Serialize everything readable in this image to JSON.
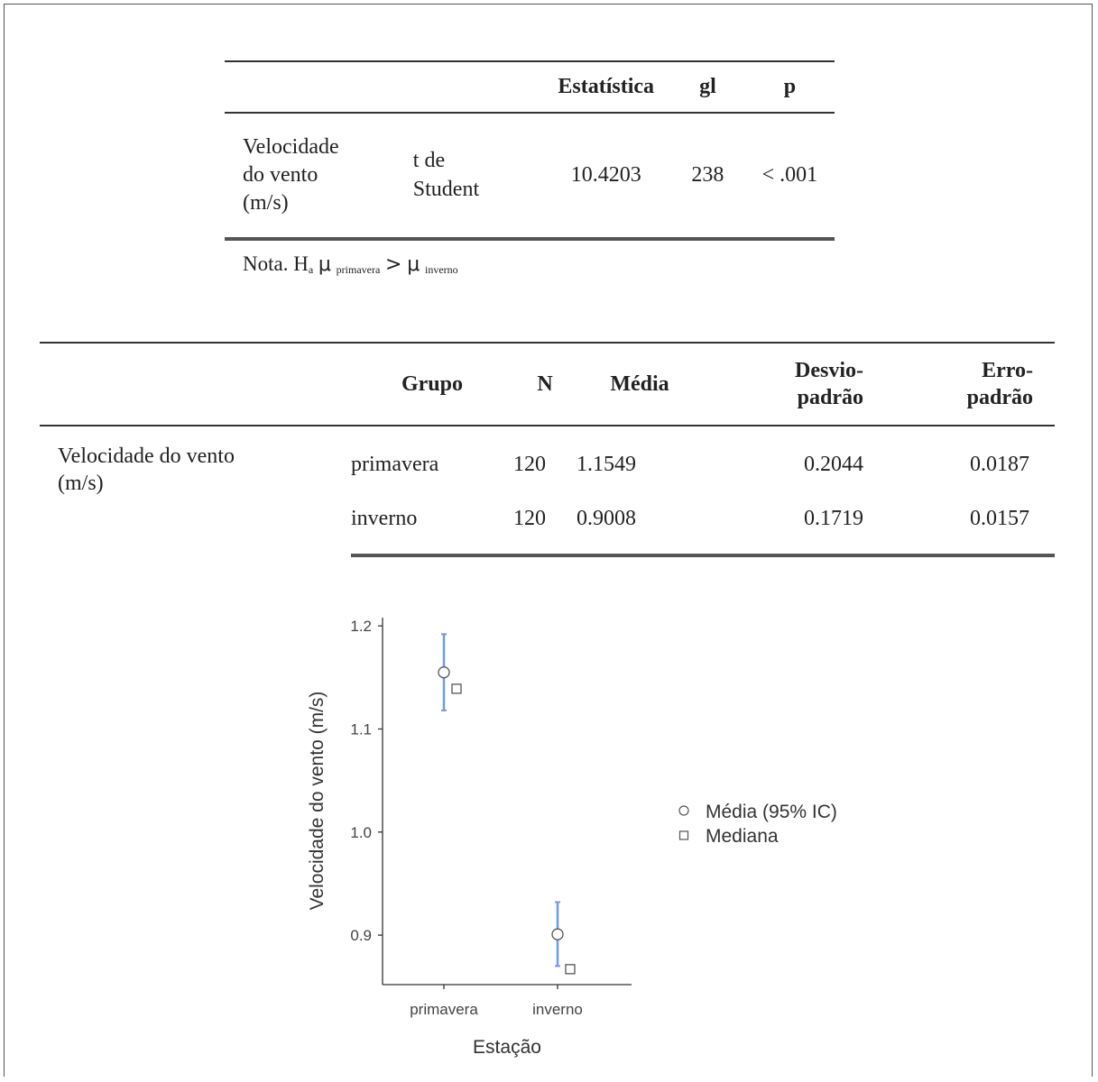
{
  "table1": {
    "headers": [
      "",
      "",
      "Estatística",
      "gl",
      "p"
    ],
    "row": {
      "variable_lines": [
        "Velocidade",
        "do vento",
        "(m/s)"
      ],
      "test_lines": [
        "t de",
        "Student"
      ],
      "statistic": "10.4203",
      "gl": "238",
      "p": "< .001"
    },
    "note": {
      "prefix": "Nota. H",
      "sub_a": "a",
      "mu": "μ",
      "sub_primavera": "primavera",
      "gt": ">",
      "sub_inverno": "inverno"
    }
  },
  "table2": {
    "headers": {
      "grupo": "Grupo",
      "n": "N",
      "media": "Média",
      "desvio_line1": "Desvio-",
      "desvio_line2": "padrão",
      "erro_line1": "Erro-",
      "erro_line2": "padrão"
    },
    "variable_lines": [
      "Velocidade do vento",
      "(m/s)"
    ],
    "rows": [
      {
        "grupo": "primavera",
        "n": "120",
        "media": "1.1549",
        "desvio": "0.2044",
        "erro": "0.0187"
      },
      {
        "grupo": "inverno",
        "n": "120",
        "media": "0.9008",
        "desvio": "0.1719",
        "erro": "0.0157"
      }
    ]
  },
  "chart_data": {
    "type": "scatter",
    "categories": [
      "primavera",
      "inverno"
    ],
    "xlabel": "Estação",
    "ylabel": "Velocidade do vento (m/s)",
    "ylim": [
      0.852,
      1.208
    ],
    "yticks": [
      0.9,
      1.0,
      1.1,
      1.2
    ],
    "ytick_labels": [
      "0.9",
      "1.0",
      "1.1",
      "1.2"
    ],
    "series": [
      {
        "name": "Média (95% IC)",
        "marker": "circle",
        "values": [
          1.1549,
          0.9008
        ],
        "ci_low": [
          1.118,
          0.87
        ],
        "ci_high": [
          1.192,
          0.932
        ]
      },
      {
        "name": "Mediana",
        "marker": "square",
        "values": [
          1.139,
          0.867
        ]
      }
    ],
    "grid": false,
    "legend": "right",
    "colors": {
      "error_bar": "#6f9ce8",
      "marker_stroke": "#555555",
      "axis": "#333333",
      "text": "#444444"
    }
  }
}
